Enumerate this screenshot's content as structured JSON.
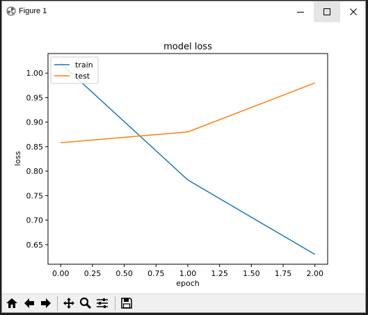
{
  "window": {
    "title": "Figure 1",
    "controls": {
      "minimize_icon": "minimize-icon",
      "maximize_icon": "maximize-icon",
      "close_icon": "close-icon"
    }
  },
  "colors": {
    "train": "#1f77b4",
    "test": "#ff7f0e",
    "axes": "#000000"
  },
  "chart_data": {
    "type": "line",
    "title": "model loss",
    "xlabel": "epoch",
    "ylabel": "loss",
    "x": [
      0,
      1,
      2
    ],
    "series": [
      {
        "name": "train",
        "values": [
          1.02,
          0.782,
          0.63
        ]
      },
      {
        "name": "test",
        "values": [
          0.858,
          0.88,
          0.98
        ]
      }
    ],
    "xlim": [
      -0.1,
      2.1
    ],
    "ylim": [
      0.61,
      1.04
    ],
    "xticks": [
      "0.00",
      "0.25",
      "0.50",
      "0.75",
      "1.00",
      "1.25",
      "1.50",
      "1.75",
      "2.00"
    ],
    "yticks": [
      "0.65",
      "0.70",
      "0.75",
      "0.80",
      "0.85",
      "0.90",
      "0.95",
      "1.00"
    ],
    "legend": "top-left",
    "grid": false
  },
  "toolbar": {
    "buttons": [
      "home-icon",
      "back-icon",
      "forward-icon",
      "pan-icon",
      "zoom-icon",
      "configure-subplots-icon",
      "save-icon"
    ]
  }
}
